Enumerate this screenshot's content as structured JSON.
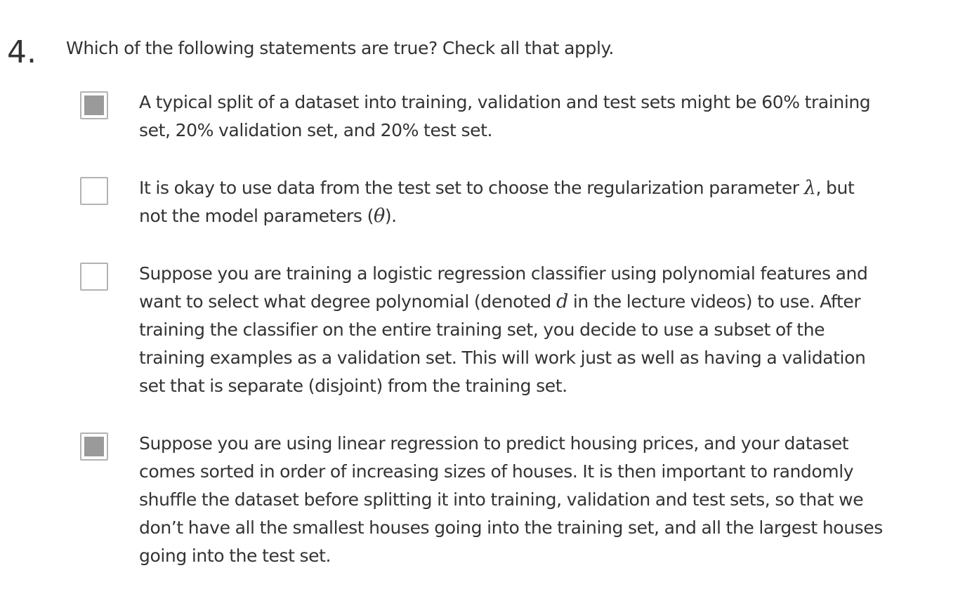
{
  "question": {
    "number": "4.",
    "prompt": "Which of the following statements are true? Check all that apply."
  },
  "options": [
    {
      "checked": true,
      "text": "A typical split of a dataset into training, validation and test sets might be 60% training set, 20% validation set, and 20% test set."
    },
    {
      "checked": false,
      "text_before": "It is okay to use data from the test set to choose the regularization parameter ",
      "math1": "λ",
      "text_middle": ", but not the model parameters (",
      "math2": "θ",
      "text_after": ")."
    },
    {
      "checked": false,
      "text_before": "Suppose you are training a logistic regression classifier using polynomial features and want to select what degree polynomial (denoted ",
      "math1": "d",
      "text_after": " in the lecture videos) to use. After training the classifier on the entire training set, you decide to use a subset of the training examples as a validation set. This will work just as well as having a validation set that is separate (disjoint) from the training set."
    },
    {
      "checked": true,
      "text": "Suppose you are using linear regression to predict housing prices, and your dataset comes sorted in order of increasing sizes of houses. It is then important to randomly shuffle the dataset before splitting it into training, validation and test sets, so that we don’t have all the smallest houses going into the training set, and all the largest houses going into the test set."
    }
  ],
  "colors": {
    "text": "#333333",
    "checkbox_border": "#b3b3b3",
    "checkbox_fill": "#9a9a9a"
  }
}
